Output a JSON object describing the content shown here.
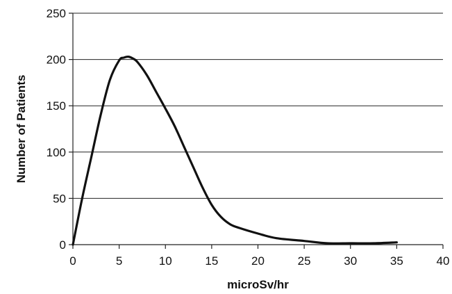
{
  "chart_data": {
    "type": "line",
    "title": "",
    "xlabel": "microSv/hr",
    "ylabel": "Number of Patients",
    "xlim": [
      0,
      40
    ],
    "ylim": [
      0,
      250
    ],
    "xticks": [
      0,
      5,
      10,
      15,
      20,
      25,
      30,
      35,
      40
    ],
    "yticks": [
      0,
      50,
      100,
      150,
      200,
      250
    ],
    "grid": "horizontal",
    "legend": "none",
    "series": [
      {
        "color": "#111111",
        "x": [
          0,
          1,
          2,
          3,
          4,
          5,
          5.5,
          6,
          6.5,
          7,
          8,
          9,
          10,
          11,
          12,
          13,
          14,
          15,
          16,
          17,
          18,
          20,
          22,
          25,
          27.5,
          30,
          32.5,
          35
        ],
        "y": [
          0,
          50,
          95,
          140,
          178,
          199,
          202,
          203,
          201,
          197,
          183,
          165,
          147,
          128,
          106,
          84,
          62,
          43,
          30,
          22,
          18,
          12,
          7,
          4,
          1.5,
          1.5,
          1.5,
          2.5
        ]
      }
    ]
  }
}
